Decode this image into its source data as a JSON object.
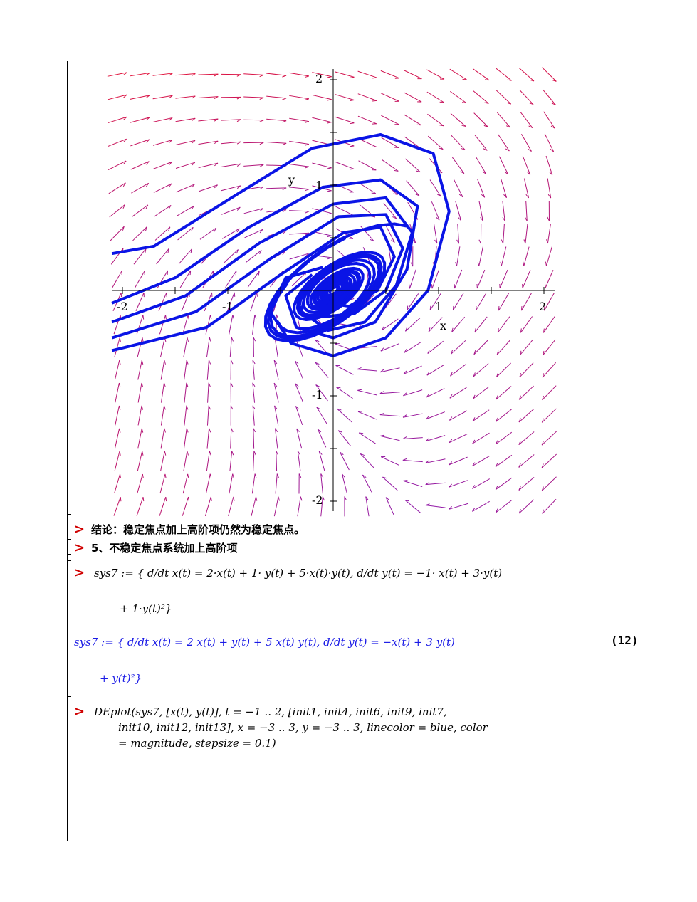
{
  "plot": {
    "x_ticks": [
      "-2",
      "-1",
      "1",
      "2"
    ],
    "y_ticks": [
      "2",
      "1",
      "-1",
      "-2"
    ],
    "x_label": "x",
    "y_label": "y",
    "field_colors": {
      "low": "#8a1ab0",
      "high": "#e0103a"
    },
    "curve_color": "#0a14e6"
  },
  "lines": {
    "conclusion": "结论：稳定焦点加上高阶项仍然为稳定焦点。",
    "section": "5、不稳定焦点系统加上高阶项",
    "input1_a": "sys7 := { d/dt x(t) = 2·x(t) + 1· y(t) + 5·x(t)·y(t),  d/dt y(t) = −1· x(t) + 3·y(t)",
    "input1_b": "+ 1·y(t)²}",
    "output1_a": "sys7 := { d/dt x(t) = 2 x(t) + y(t) + 5 x(t) y(t),  d/dt y(t) = −x(t) + 3 y(t)",
    "output1_b": "+ y(t)²}",
    "eq_number": "(12)",
    "input2_a": "DEplot(sys7, [x(t), y(t)], t = −1 .. 2, [init1, init4, init6, init9, init7,",
    "input2_b": "init10, init12, init13], x = −3 .. 3, y = −3 .. 3, linecolor = blue, color",
    "input2_c": "= magnitude, stepsize = 0.1)"
  }
}
